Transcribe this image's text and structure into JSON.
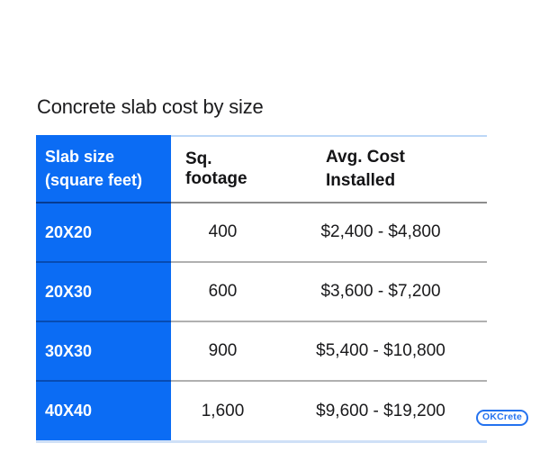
{
  "title": "Concrete slab cost by size",
  "table": {
    "header": {
      "slab_size_line1": "Slab size",
      "slab_size_line2": "(square feet)",
      "sq_footage": "Sq. footage",
      "avg_cost_line1": "Avg. Cost",
      "avg_cost_line2": "Installed"
    },
    "rows": [
      {
        "slab_size": "20X20",
        "sq_footage": "400",
        "avg_cost": "$2,400 - $4,800"
      },
      {
        "slab_size": "20X30",
        "sq_footage": "600",
        "avg_cost": "$3,600 - $7,200"
      },
      {
        "slab_size": "30X30",
        "sq_footage": "900",
        "avg_cost": "$5,400 - $10,800"
      },
      {
        "slab_size": "40X40",
        "sq_footage": "1,600",
        "avg_cost": "$9,600 - $19,200"
      }
    ]
  },
  "logo": {
    "text": "OKCrete"
  },
  "colors": {
    "header_column_blue": "#0b6cf4",
    "logo_blue": "#2472ef",
    "table_top_border": "#bcd7f7",
    "table_bottom_border": "#cfe0f7",
    "header_divider": "#8c8c8c",
    "row_divider": "#b0b0b0",
    "text_dark": "#1a1a1c",
    "text_white": "#ffffff"
  },
  "chart_data": {
    "type": "table",
    "title": "Concrete slab cost by size",
    "columns": [
      "Slab size (square feet)",
      "Sq. footage",
      "Avg. Cost Installed"
    ],
    "rows": [
      [
        "20X20",
        400,
        "$2,400 - $4,800"
      ],
      [
        "20X30",
        600,
        "$3,600 - $7,200"
      ],
      [
        "30X30",
        900,
        "$5,400 - $10,800"
      ],
      [
        "40X40",
        1600,
        "$9,600 - $19,200"
      ]
    ]
  }
}
